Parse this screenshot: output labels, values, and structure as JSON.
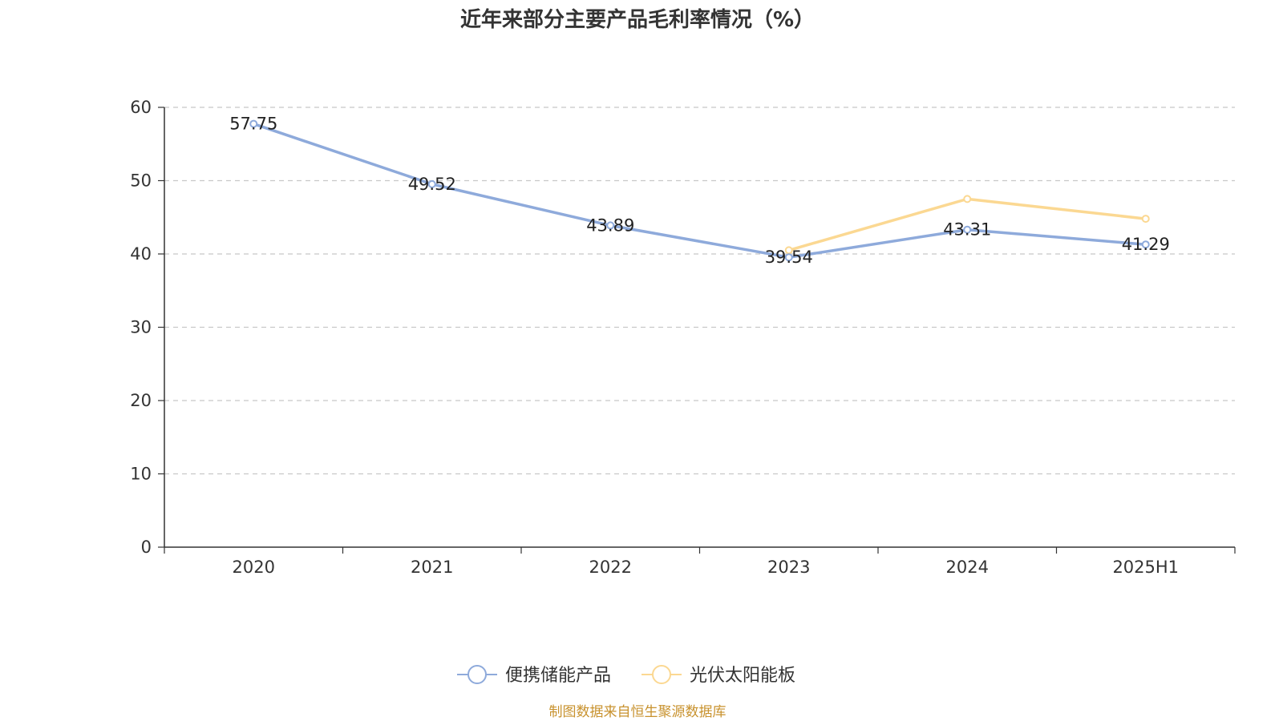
{
  "chart_data": {
    "type": "line",
    "title": "近年来部分主要产品毛利率情况（%）",
    "categories": [
      "2020",
      "2021",
      "2022",
      "2023",
      "2024",
      "2025H1"
    ],
    "ylim": [
      0,
      60
    ],
    "yticks": [
      "0",
      "10",
      "20",
      "30",
      "40",
      "50",
      "60"
    ],
    "grid": true,
    "legend_position": "bottom-center",
    "series": [
      {
        "name": "便携储能产品",
        "color": "#8eaadb",
        "values": [
          57.75,
          49.52,
          43.89,
          39.54,
          43.31,
          41.29
        ],
        "labels": [
          "57.75",
          "49.52",
          "43.89",
          "39.54",
          "43.31",
          "41.29"
        ]
      },
      {
        "name": "光伏太阳能板",
        "color": "#fbd892",
        "values": [
          null,
          null,
          null,
          40.5,
          47.5,
          44.8
        ],
        "labels": []
      }
    ],
    "source": "制图数据来自恒生聚源数据库"
  }
}
